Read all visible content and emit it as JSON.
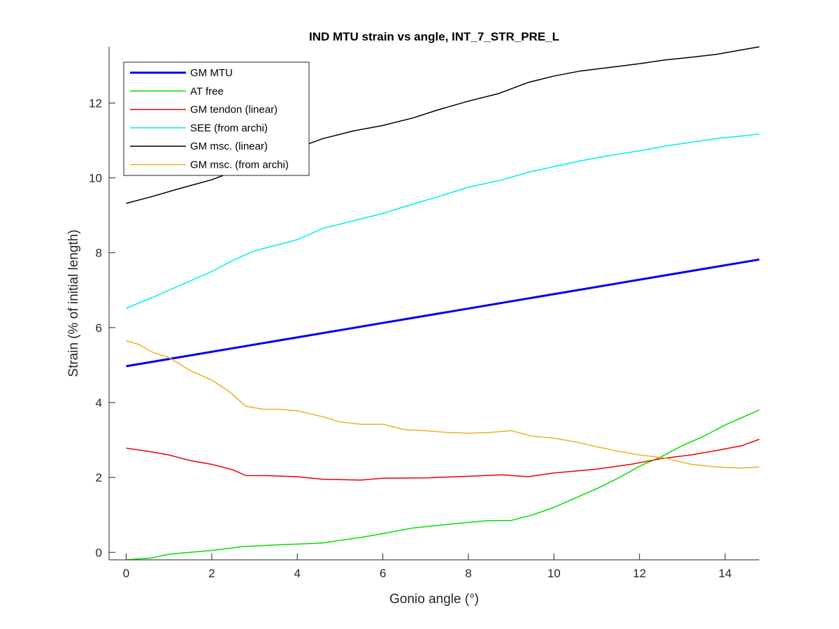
{
  "chart_data": {
    "type": "line",
    "title": "IND MTU strain vs angle, INT_7_STR_PRE_L",
    "xlabel": "Gonio angle (°)",
    "ylabel": "Strain (% of initial length)",
    "xlim": [
      -0.4,
      14.8
    ],
    "ylim": [
      -0.2,
      13.5
    ],
    "xticks": [
      0,
      2,
      4,
      6,
      8,
      10,
      12,
      14
    ],
    "yticks": [
      0,
      2,
      4,
      6,
      8,
      10,
      12
    ],
    "legend_position": "top-left",
    "series": [
      {
        "name": "GM MTU",
        "color": "#0000ee",
        "thick": true,
        "x": [
          0,
          14.8
        ],
        "y": [
          4.97,
          7.82
        ]
      },
      {
        "name": "AT free",
        "color": "#00e000",
        "x": [
          0,
          0.6,
          1,
          1.5,
          2,
          2.7,
          3.5,
          4,
          4.6,
          5,
          5.5,
          6,
          6.7,
          7.3,
          8,
          8.5,
          9,
          9.5,
          10,
          10.5,
          11,
          11.5,
          12,
          12.5,
          13,
          13.5,
          14,
          14.5,
          14.8
        ],
        "y": [
          -0.2,
          -0.15,
          -0.05,
          0,
          0.05,
          0.15,
          0.2,
          0.22,
          0.25,
          0.32,
          0.4,
          0.5,
          0.65,
          0.72,
          0.8,
          0.85,
          0.85,
          1.0,
          1.2,
          1.45,
          1.7,
          1.98,
          2.3,
          2.55,
          2.85,
          3.1,
          3.4,
          3.65,
          3.8
        ]
      },
      {
        "name": "GM tendon (linear)",
        "color": "#ee0000",
        "x": [
          0,
          0.5,
          1,
          1.5,
          2,
          2.5,
          2.8,
          3.3,
          4,
          4.6,
          5.5,
          6,
          7,
          8,
          8.8,
          9.4,
          10,
          11,
          11.8,
          12.5,
          13.2,
          13.8,
          14.4,
          14.8
        ],
        "y": [
          2.78,
          2.7,
          2.6,
          2.45,
          2.35,
          2.2,
          2.05,
          2.05,
          2.02,
          1.95,
          1.93,
          1.98,
          1.99,
          2.03,
          2.07,
          2.02,
          2.12,
          2.22,
          2.35,
          2.5,
          2.6,
          2.72,
          2.85,
          3.02
        ]
      },
      {
        "name": "SEE (from archi)",
        "color": "#00eeee",
        "x": [
          0,
          0.6,
          1.2,
          2,
          2.5,
          3,
          3.5,
          4,
          4.6,
          5.3,
          6,
          6.7,
          7.3,
          8,
          8.8,
          9.4,
          10,
          10.6,
          11.3,
          12,
          12.6,
          13.2,
          13.8,
          14.4,
          14.8
        ],
        "y": [
          6.52,
          6.8,
          7.1,
          7.5,
          7.8,
          8.05,
          8.2,
          8.35,
          8.65,
          8.85,
          9.05,
          9.3,
          9.5,
          9.75,
          9.95,
          10.15,
          10.3,
          10.45,
          10.6,
          10.72,
          10.85,
          10.95,
          11.05,
          11.12,
          11.17
        ]
      },
      {
        "name": "GM msc. (linear)",
        "color": "#000000",
        "x": [
          0,
          0.6,
          1.2,
          2,
          2.7,
          3.3,
          4,
          4.6,
          5.3,
          6,
          6.7,
          7.3,
          8,
          8.7,
          9.4,
          10,
          10.6,
          11.3,
          12,
          12.6,
          13.2,
          13.8,
          14.4,
          14.8
        ],
        "y": [
          9.32,
          9.5,
          9.7,
          9.95,
          10.25,
          10.55,
          10.8,
          11.05,
          11.25,
          11.4,
          11.6,
          11.82,
          12.05,
          12.25,
          12.55,
          12.72,
          12.85,
          12.95,
          13.05,
          13.15,
          13.22,
          13.3,
          13.42,
          13.5
        ]
      },
      {
        "name": "GM msc. (from archi)",
        "color": "#edb120",
        "x": [
          0,
          0.3,
          0.6,
          1,
          1.5,
          2,
          2.4,
          2.8,
          3.2,
          3.6,
          4,
          4.6,
          5,
          5.5,
          6,
          6.5,
          7,
          7.5,
          8,
          8.5,
          9,
          9.5,
          10,
          10.5,
          11,
          11.5,
          12,
          12.6,
          13.2,
          13.8,
          14.4,
          14.8
        ],
        "y": [
          5.65,
          5.55,
          5.35,
          5.2,
          4.85,
          4.6,
          4.3,
          3.9,
          3.82,
          3.82,
          3.78,
          3.62,
          3.48,
          3.42,
          3.42,
          3.28,
          3.25,
          3.2,
          3.18,
          3.2,
          3.25,
          3.1,
          3.05,
          2.95,
          2.82,
          2.7,
          2.6,
          2.52,
          2.35,
          2.28,
          2.25,
          2.28
        ]
      }
    ]
  }
}
